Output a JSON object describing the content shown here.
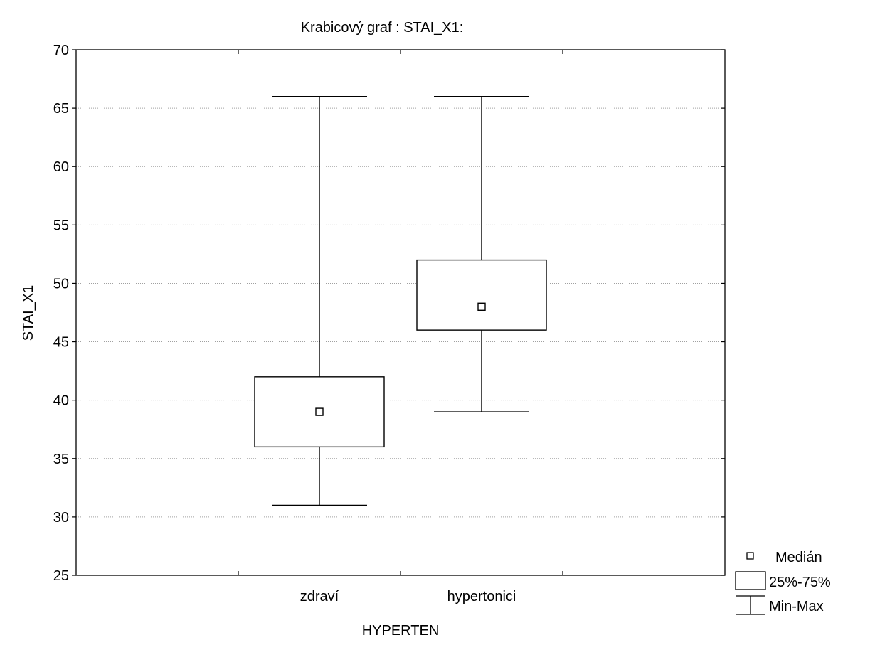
{
  "chart_data": {
    "type": "box",
    "title": "Krabicový  graf :   STAI_X1:",
    "xlabel": "HYPERTEN",
    "ylabel": "STAI_X1",
    "ylim": [
      25,
      70
    ],
    "yticks": [
      25,
      30,
      35,
      40,
      45,
      50,
      55,
      60,
      65,
      70
    ],
    "categories": [
      "zdraví",
      "hypertonici"
    ],
    "boxes": [
      {
        "category": "zdraví",
        "min": 31,
        "q1": 36,
        "median": 39,
        "q3": 42,
        "max": 66
      },
      {
        "category": "hypertonici",
        "min": 39,
        "q1": 46,
        "median": 48,
        "q3": 52,
        "max": 66
      }
    ],
    "legend": {
      "position": "bottom-right",
      "entries": [
        {
          "symbol": "median-square",
          "label": "Medián"
        },
        {
          "symbol": "box",
          "label": "25%-75%"
        },
        {
          "symbol": "whisker",
          "label": "Min-Max"
        }
      ]
    },
    "grid": {
      "horizontal": true,
      "style": "dotted"
    },
    "colors": {
      "line": "#000000",
      "grid": "#a0a0a0",
      "background": "#ffffff"
    }
  }
}
